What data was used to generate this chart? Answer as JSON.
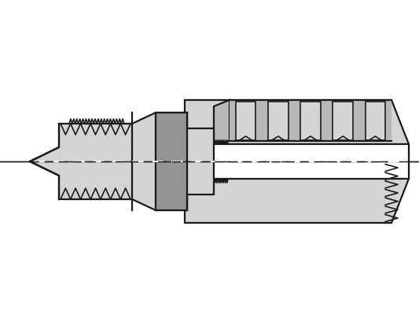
{
  "bg_color": "#ffffff",
  "line_color": "#1a1a1a",
  "fill_light": "#d4d4d4",
  "fill_medium": "#b8b8b8",
  "fill_dark": "#949494",
  "fig_width": 5.33,
  "fig_height": 4.0,
  "dpi": 100
}
